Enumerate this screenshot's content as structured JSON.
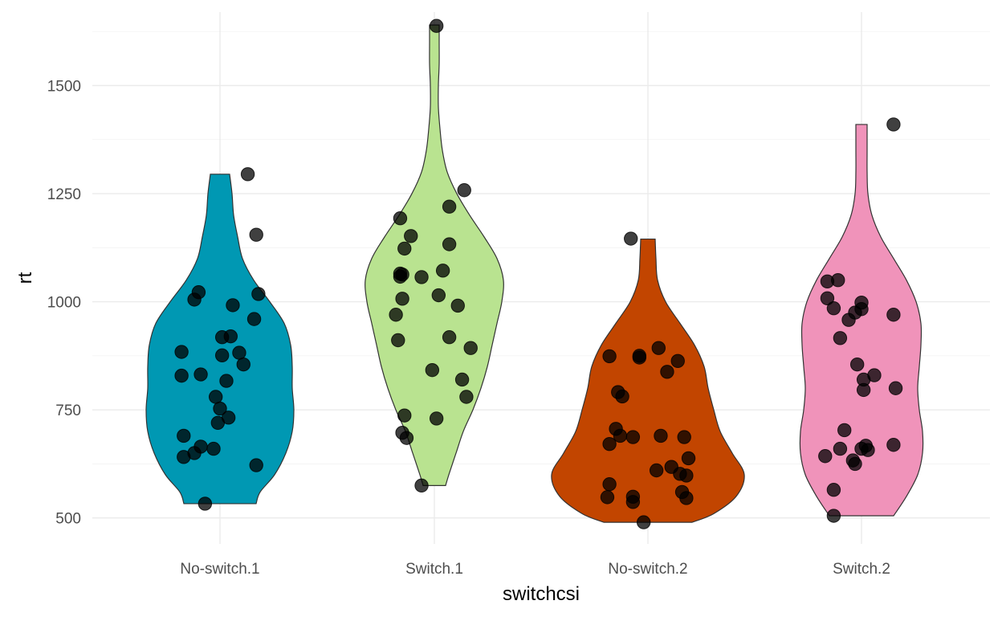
{
  "chart_data": {
    "type": "violin",
    "xlabel": "switchcsi",
    "ylabel": "rt",
    "categories": [
      "No-switch.1",
      "Switch.1",
      "No-switch.2",
      "Switch.2"
    ],
    "colors": [
      "#0098b3",
      "#b9e390",
      "#c24500",
      "#f093ba"
    ],
    "ylim": [
      440,
      1670
    ],
    "yticks": [
      500,
      750,
      1000,
      1250,
      1500
    ],
    "ytick_labels": [
      "500",
      "750",
      "1000",
      "1250",
      "1500"
    ],
    "grid": true,
    "legend": "none",
    "series": [
      {
        "category": "No-switch.1",
        "range": [
          533,
          1295
        ],
        "profile": [
          [
            533,
            45
          ],
          [
            560,
            50
          ],
          [
            600,
            68
          ],
          [
            650,
            82
          ],
          [
            700,
            90
          ],
          [
            750,
            92
          ],
          [
            800,
            90
          ],
          [
            850,
            90
          ],
          [
            900,
            88
          ],
          [
            950,
            80
          ],
          [
            1000,
            62
          ],
          [
            1050,
            42
          ],
          [
            1100,
            28
          ],
          [
            1150,
            22
          ],
          [
            1200,
            17
          ],
          [
            1250,
            15
          ],
          [
            1295,
            12
          ]
        ],
        "points": [
          {
            "j": -0.07,
            "y": 533
          },
          {
            "j": 0.17,
            "y": 622
          },
          {
            "j": -0.17,
            "y": 641
          },
          {
            "j": -0.12,
            "y": 650
          },
          {
            "j": -0.09,
            "y": 665
          },
          {
            "j": -0.03,
            "y": 660
          },
          {
            "j": -0.17,
            "y": 690
          },
          {
            "j": -0.01,
            "y": 720
          },
          {
            "j": 0.04,
            "y": 732
          },
          {
            "j": 0.0,
            "y": 753
          },
          {
            "j": -0.02,
            "y": 780
          },
          {
            "j": 0.03,
            "y": 817
          },
          {
            "j": -0.18,
            "y": 829
          },
          {
            "j": -0.09,
            "y": 832
          },
          {
            "j": 0.11,
            "y": 855
          },
          {
            "j": 0.01,
            "y": 876
          },
          {
            "j": 0.09,
            "y": 882
          },
          {
            "j": -0.18,
            "y": 884
          },
          {
            "j": 0.01,
            "y": 918
          },
          {
            "j": 0.05,
            "y": 920
          },
          {
            "j": 0.16,
            "y": 960
          },
          {
            "j": 0.06,
            "y": 992
          },
          {
            "j": -0.12,
            "y": 1005
          },
          {
            "j": 0.18,
            "y": 1018
          },
          {
            "j": -0.1,
            "y": 1022
          },
          {
            "j": 0.17,
            "y": 1155
          },
          {
            "j": 0.13,
            "y": 1295
          }
        ]
      },
      {
        "category": "Switch.1",
        "range": [
          575,
          1640
        ],
        "profile": [
          [
            575,
            14
          ],
          [
            600,
            18
          ],
          [
            650,
            27
          ],
          [
            700,
            36
          ],
          [
            750,
            48
          ],
          [
            800,
            58
          ],
          [
            850,
            66
          ],
          [
            900,
            72
          ],
          [
            950,
            78
          ],
          [
            1000,
            84
          ],
          [
            1050,
            86
          ],
          [
            1100,
            78
          ],
          [
            1150,
            62
          ],
          [
            1200,
            44
          ],
          [
            1250,
            28
          ],
          [
            1300,
            16
          ],
          [
            1350,
            10
          ],
          [
            1400,
            7
          ],
          [
            1450,
            5
          ],
          [
            1500,
            5
          ],
          [
            1550,
            6
          ],
          [
            1600,
            6
          ],
          [
            1640,
            6
          ]
        ],
        "points": [
          {
            "j": -0.06,
            "y": 575
          },
          {
            "j": -0.13,
            "y": 685
          },
          {
            "j": -0.15,
            "y": 697
          },
          {
            "j": -0.14,
            "y": 737
          },
          {
            "j": 0.01,
            "y": 730
          },
          {
            "j": 0.15,
            "y": 780
          },
          {
            "j": 0.13,
            "y": 820
          },
          {
            "j": -0.01,
            "y": 842
          },
          {
            "j": 0.17,
            "y": 893
          },
          {
            "j": -0.17,
            "y": 911
          },
          {
            "j": 0.07,
            "y": 918
          },
          {
            "j": -0.18,
            "y": 970
          },
          {
            "j": 0.11,
            "y": 991
          },
          {
            "j": -0.15,
            "y": 1007
          },
          {
            "j": 0.02,
            "y": 1015
          },
          {
            "j": -0.16,
            "y": 1058
          },
          {
            "j": -0.16,
            "y": 1065
          },
          {
            "j": -0.15,
            "y": 1063
          },
          {
            "j": -0.06,
            "y": 1057
          },
          {
            "j": 0.04,
            "y": 1072
          },
          {
            "j": -0.14,
            "y": 1123
          },
          {
            "j": 0.07,
            "y": 1133
          },
          {
            "j": -0.11,
            "y": 1152
          },
          {
            "j": -0.16,
            "y": 1193
          },
          {
            "j": 0.07,
            "y": 1220
          },
          {
            "j": 0.14,
            "y": 1258
          },
          {
            "j": 0.01,
            "y": 1638
          }
        ]
      },
      {
        "category": "No-switch.2",
        "range": [
          490,
          1145
        ],
        "profile": [
          [
            490,
            55
          ],
          [
            510,
            82
          ],
          [
            550,
            110
          ],
          [
            600,
            120
          ],
          [
            650,
            105
          ],
          [
            700,
            90
          ],
          [
            750,
            82
          ],
          [
            800,
            75
          ],
          [
            850,
            70
          ],
          [
            900,
            58
          ],
          [
            950,
            40
          ],
          [
            1000,
            22
          ],
          [
            1050,
            12
          ],
          [
            1100,
            10
          ],
          [
            1145,
            9
          ]
        ],
        "points": [
          {
            "j": -0.02,
            "y": 490
          },
          {
            "j": -0.19,
            "y": 548
          },
          {
            "j": -0.07,
            "y": 549
          },
          {
            "j": -0.07,
            "y": 537
          },
          {
            "j": 0.18,
            "y": 546
          },
          {
            "j": 0.16,
            "y": 560
          },
          {
            "j": -0.18,
            "y": 578
          },
          {
            "j": 0.18,
            "y": 598
          },
          {
            "j": 0.15,
            "y": 602
          },
          {
            "j": 0.04,
            "y": 610
          },
          {
            "j": 0.11,
            "y": 618
          },
          {
            "j": 0.19,
            "y": 638
          },
          {
            "j": -0.18,
            "y": 671
          },
          {
            "j": 0.17,
            "y": 687
          },
          {
            "j": -0.07,
            "y": 687
          },
          {
            "j": -0.13,
            "y": 690
          },
          {
            "j": 0.06,
            "y": 690
          },
          {
            "j": -0.15,
            "y": 706
          },
          {
            "j": -0.12,
            "y": 781
          },
          {
            "j": -0.14,
            "y": 791
          },
          {
            "j": 0.09,
            "y": 838
          },
          {
            "j": 0.14,
            "y": 863
          },
          {
            "j": -0.18,
            "y": 874
          },
          {
            "j": -0.04,
            "y": 871
          },
          {
            "j": -0.04,
            "y": 875
          },
          {
            "j": 0.05,
            "y": 893
          },
          {
            "j": -0.08,
            "y": 1146
          }
        ]
      },
      {
        "category": "Switch.2",
        "range": [
          505,
          1410
        ],
        "profile": [
          [
            505,
            40
          ],
          [
            550,
            56
          ],
          [
            600,
            70
          ],
          [
            650,
            76
          ],
          [
            700,
            76
          ],
          [
            750,
            72
          ],
          [
            800,
            70
          ],
          [
            850,
            72
          ],
          [
            900,
            74
          ],
          [
            950,
            74
          ],
          [
            1000,
            68
          ],
          [
            1050,
            56
          ],
          [
            1100,
            40
          ],
          [
            1150,
            24
          ],
          [
            1200,
            13
          ],
          [
            1250,
            8
          ],
          [
            1300,
            7
          ],
          [
            1350,
            7
          ],
          [
            1410,
            7
          ]
        ],
        "points": [
          {
            "j": -0.13,
            "y": 505
          },
          {
            "j": -0.13,
            "y": 565
          },
          {
            "j": -0.17,
            "y": 643
          },
          {
            "j": -0.1,
            "y": 660
          },
          {
            "j": -0.04,
            "y": 633
          },
          {
            "j": -0.03,
            "y": 625
          },
          {
            "j": 0.0,
            "y": 660
          },
          {
            "j": 0.02,
            "y": 667
          },
          {
            "j": 0.03,
            "y": 657
          },
          {
            "j": 0.15,
            "y": 669
          },
          {
            "j": -0.08,
            "y": 703
          },
          {
            "j": 0.01,
            "y": 796
          },
          {
            "j": 0.16,
            "y": 800
          },
          {
            "j": 0.01,
            "y": 820
          },
          {
            "j": 0.06,
            "y": 830
          },
          {
            "j": -0.02,
            "y": 855
          },
          {
            "j": -0.1,
            "y": 916
          },
          {
            "j": -0.06,
            "y": 958
          },
          {
            "j": -0.03,
            "y": 975
          },
          {
            "j": 0.0,
            "y": 983
          },
          {
            "j": 0.0,
            "y": 998
          },
          {
            "j": 0.15,
            "y": 970
          },
          {
            "j": -0.13,
            "y": 985
          },
          {
            "j": -0.16,
            "y": 1008
          },
          {
            "j": -0.16,
            "y": 1047
          },
          {
            "j": -0.11,
            "y": 1050
          },
          {
            "j": 0.15,
            "y": 1410
          }
        ]
      }
    ]
  }
}
